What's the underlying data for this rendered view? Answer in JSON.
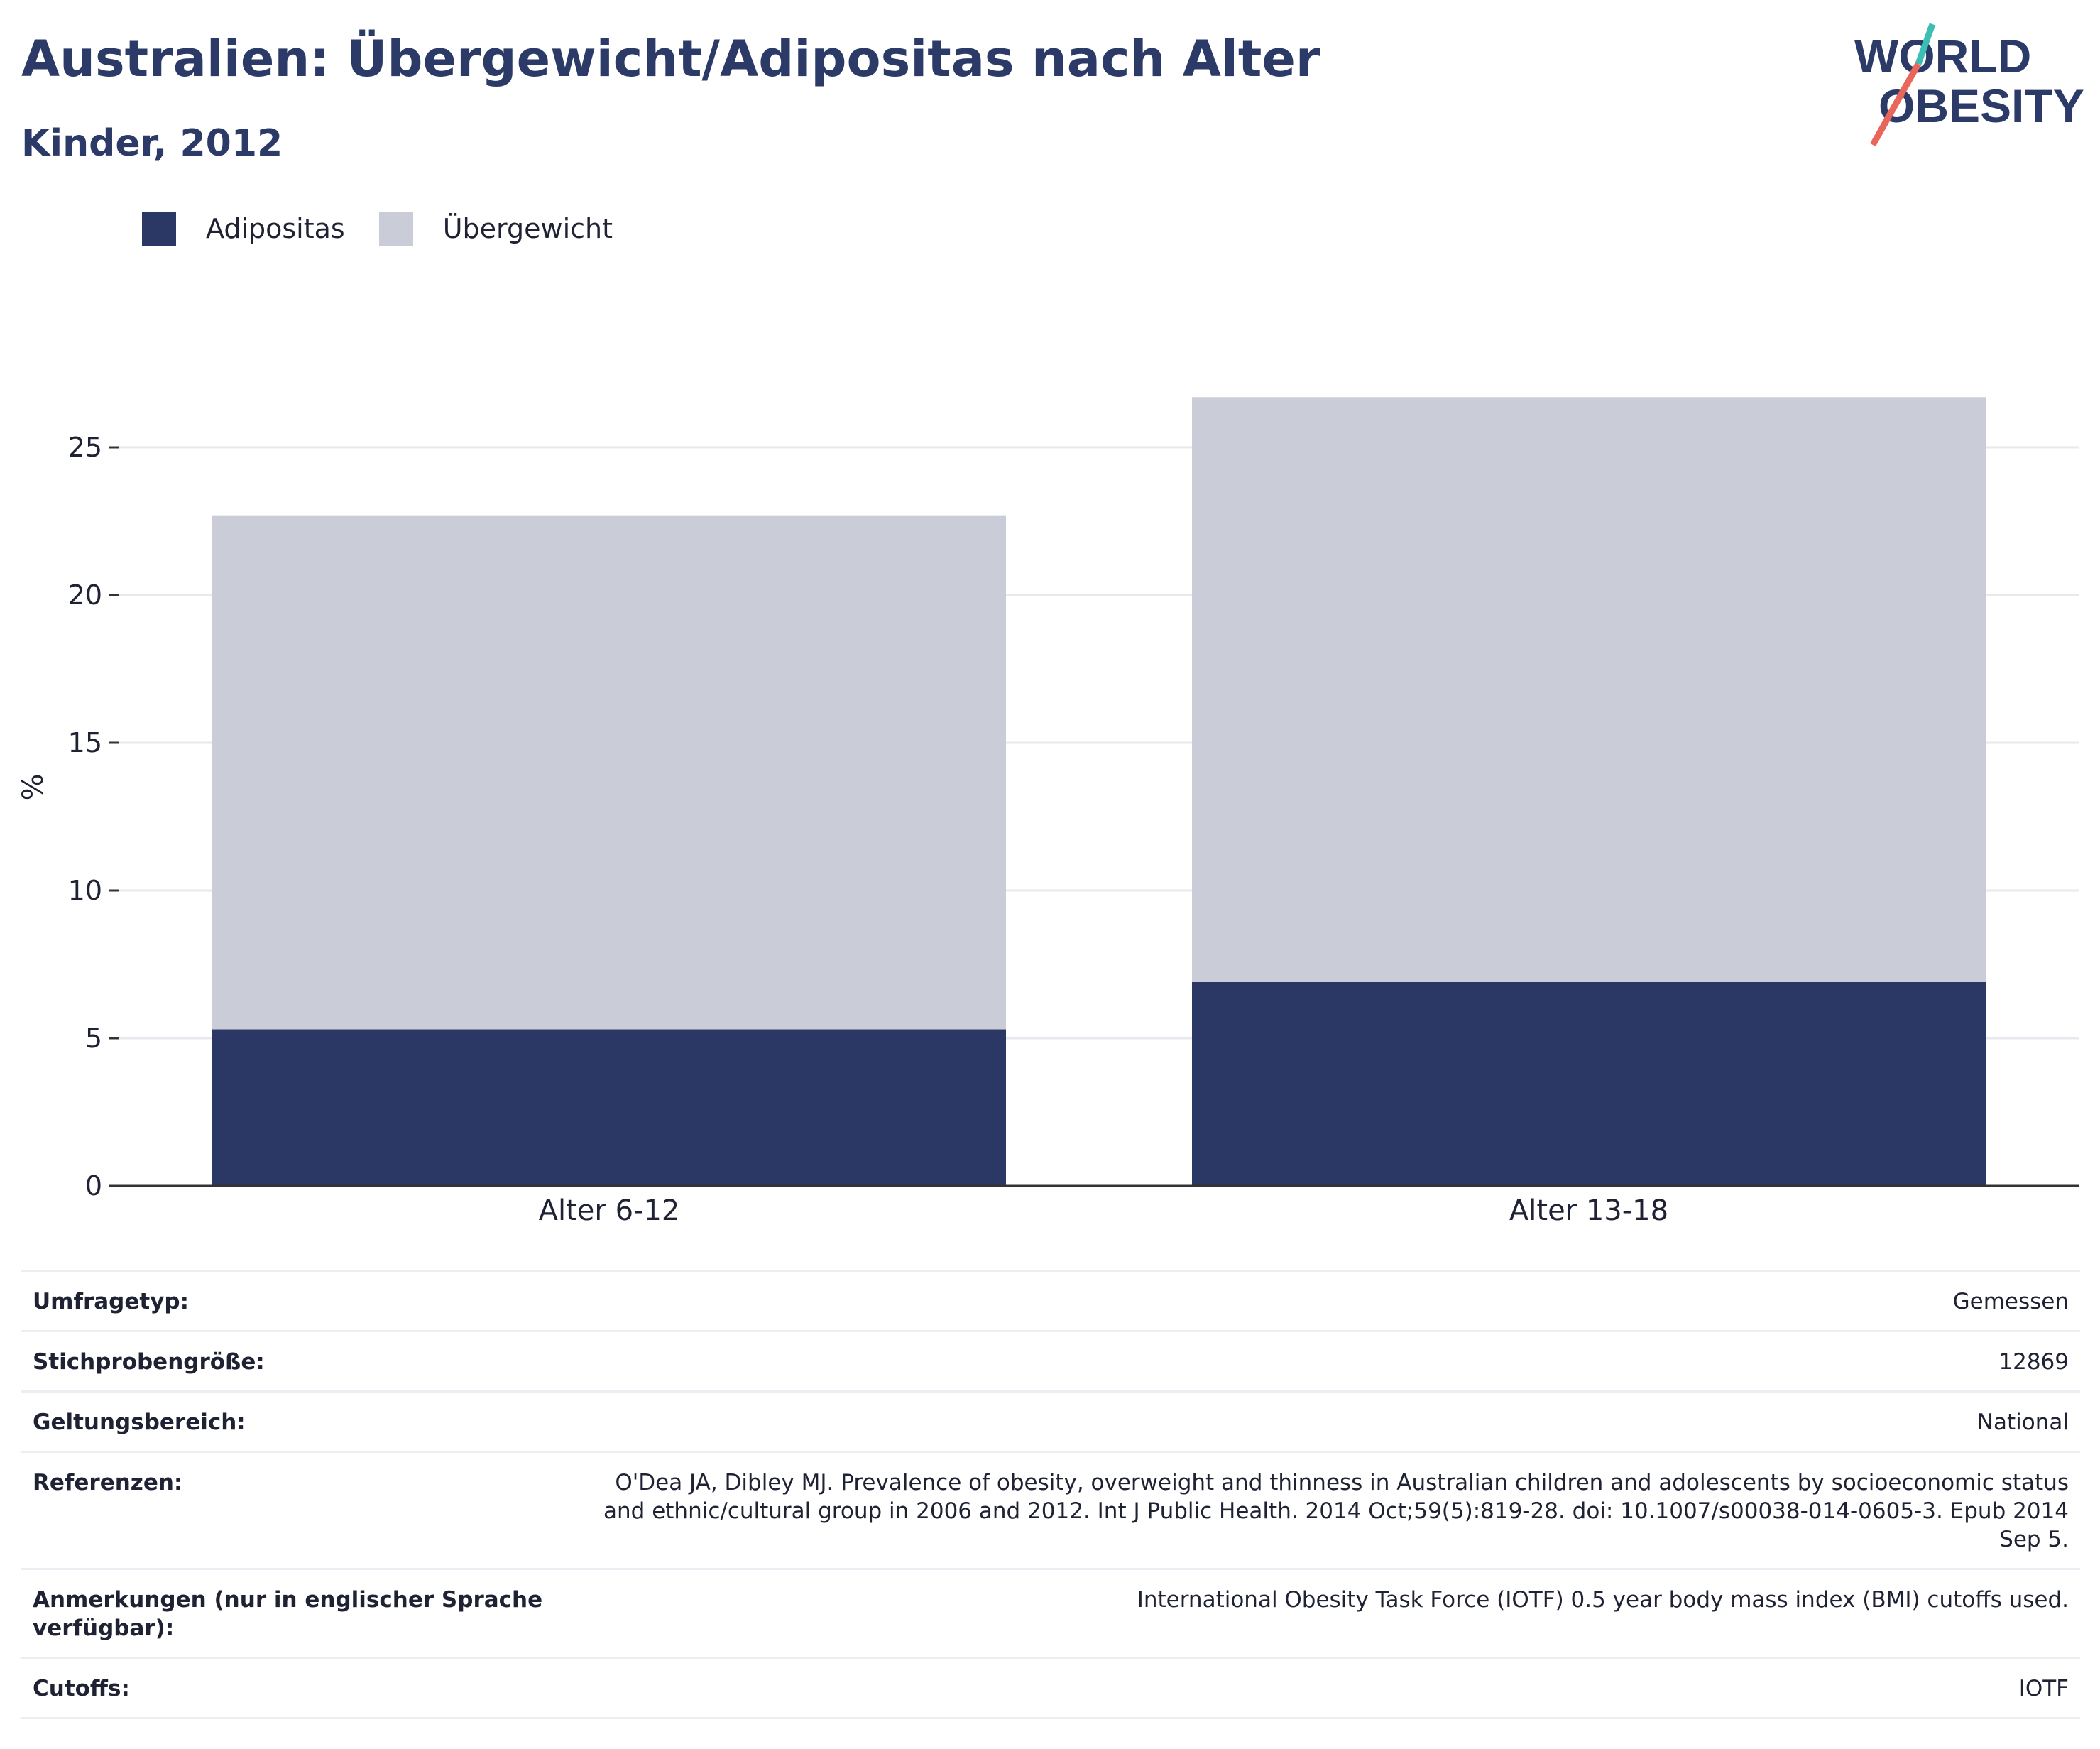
{
  "header": {
    "title": "Australien: Übergewicht/Adipositas nach Alter",
    "subtitle": "Kinder, 2012",
    "logo": {
      "line1": "WORLD",
      "line2": "OBESITY"
    }
  },
  "colors": {
    "adipositas": "#2b3764",
    "uebergewicht": "#cacdd8",
    "axis": "#333333",
    "grid": "#e8e9ef",
    "accent_red": "#e8675a",
    "accent_teal": "#3dbeb5"
  },
  "chart_data": {
    "type": "bar",
    "stacked": true,
    "categories": [
      "Alter 6-12",
      "Alter 13-18"
    ],
    "series": [
      {
        "name": "Adipositas",
        "values": [
          5.3,
          6.9
        ]
      },
      {
        "name": "Übergewicht",
        "values": [
          17.4,
          19.8
        ]
      }
    ],
    "ylabel": "%",
    "ylim": [
      0,
      27
    ],
    "yticks": [
      0,
      5,
      10,
      15,
      20,
      25
    ],
    "grid": true,
    "legend": "top-left"
  },
  "info": [
    {
      "label": "Umfragetyp:",
      "value": "Gemessen"
    },
    {
      "label": "Stichprobengröße:",
      "value": "12869"
    },
    {
      "label": "Geltungsbereich:",
      "value": "National"
    },
    {
      "label": "Referenzen:",
      "value": "O'Dea JA, Dibley MJ. Prevalence of obesity, overweight and thinness in Australian children and adolescents by socioeconomic status and ethnic/cultural group in 2006 and 2012. Int J Public Health. 2014 Oct;59(5):819-28. doi: 10.1007/s00038-014-0605-3. Epub 2014 Sep 5."
    },
    {
      "label": "Anmerkungen (nur in englischer Sprache verfügbar):",
      "value": "International Obesity Task Force (IOTF) 0.5 year body mass index (BMI) cutoffs used."
    },
    {
      "label": "Cutoffs:",
      "value": "IOTF"
    }
  ]
}
